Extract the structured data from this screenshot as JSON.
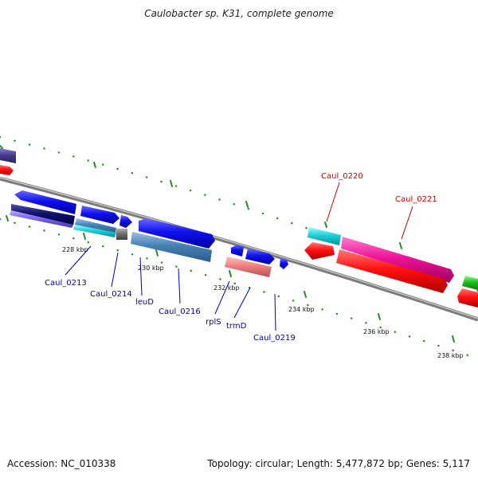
{
  "title": "Caulobacter sp. K31, complete genome",
  "footer": {
    "accession": "Accession: NC_010338",
    "summary": "Topology: circular; Length: 5,477,872 bp; Genes: 5,117"
  },
  "scale_labels": [
    "228 kbp",
    "230 kbp",
    "232 kbp",
    "234 kbp",
    "236 kbp",
    "238 kbp"
  ],
  "gene_labels": [
    {
      "name": "Caul_0213",
      "color": "#0000aa"
    },
    {
      "name": "Caul_0214",
      "color": "#0000aa"
    },
    {
      "name": "leuD",
      "color": "#0000aa"
    },
    {
      "name": "Caul_0216",
      "color": "#0000aa"
    },
    {
      "name": "rplS",
      "color": "#0000aa"
    },
    {
      "name": "trmD",
      "color": "#0000aa"
    },
    {
      "name": "Caul_0219",
      "color": "#0000aa"
    },
    {
      "name": "Caul_0220",
      "color": "#cc0000"
    },
    {
      "name": "Caul_0221",
      "color": "#cc0000"
    }
  ],
  "colors": {
    "backbone": "#8a8a8a",
    "forward_cds": "#1010ee",
    "reverse_cds": "#ff1010",
    "forward_label": "#0000aa",
    "reverse_label": "#cc0000",
    "ticks": "#2a8a2a"
  }
}
